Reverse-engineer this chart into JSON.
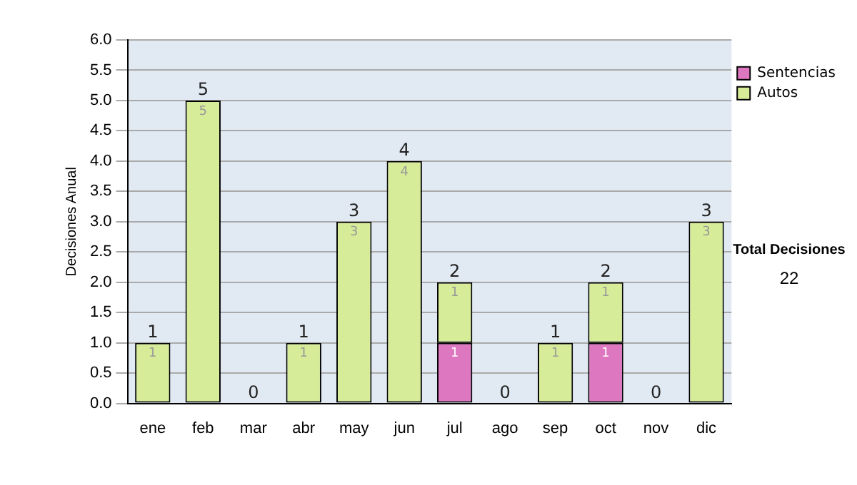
{
  "chart_data": {
    "type": "bar",
    "ylabel": "Decisiones Anual",
    "stacked": true,
    "categories": [
      "ene",
      "feb",
      "mar",
      "abr",
      "may",
      "jun",
      "jul",
      "ago",
      "sep",
      "oct",
      "nov",
      "dic"
    ],
    "series": [
      {
        "name": "Sentencias",
        "color": "#dd77c0",
        "values": [
          0,
          0,
          0,
          0,
          0,
          0,
          1,
          0,
          0,
          1,
          0,
          0
        ],
        "value_labels": [
          null,
          null,
          null,
          null,
          null,
          null,
          "1",
          null,
          null,
          "1",
          null,
          null
        ]
      },
      {
        "name": "Autos",
        "color": "#d6ec98",
        "values": [
          1,
          5,
          0,
          1,
          3,
          4,
          1,
          0,
          1,
          1,
          0,
          3
        ],
        "value_labels": [
          "1",
          "5",
          null,
          "1",
          "3",
          "4",
          "1",
          null,
          "1",
          "1",
          null,
          "3"
        ]
      }
    ],
    "totals": [
      "1",
      "5",
      "0",
      "1",
      "3",
      "4",
      "2",
      "0",
      "1",
      "2",
      "0",
      "3"
    ],
    "ylim": [
      0,
      6
    ],
    "yticks": [
      {
        "value": 0,
        "label": "0.0"
      },
      0.5,
      {
        "value": 1,
        "label": "1.0"
      },
      1.5,
      {
        "value": 2,
        "label": "2.0"
      },
      2.5,
      {
        "value": 3,
        "label": "3.0"
      },
      3.5,
      {
        "value": 4,
        "label": "4.0"
      },
      4.5,
      {
        "value": 5,
        "label": "5.0"
      },
      5.5,
      {
        "value": 6,
        "label": "6.0"
      }
    ],
    "grid": "y",
    "legend": "right",
    "annotations": [
      "Total Decisiones",
      "22"
    ]
  }
}
